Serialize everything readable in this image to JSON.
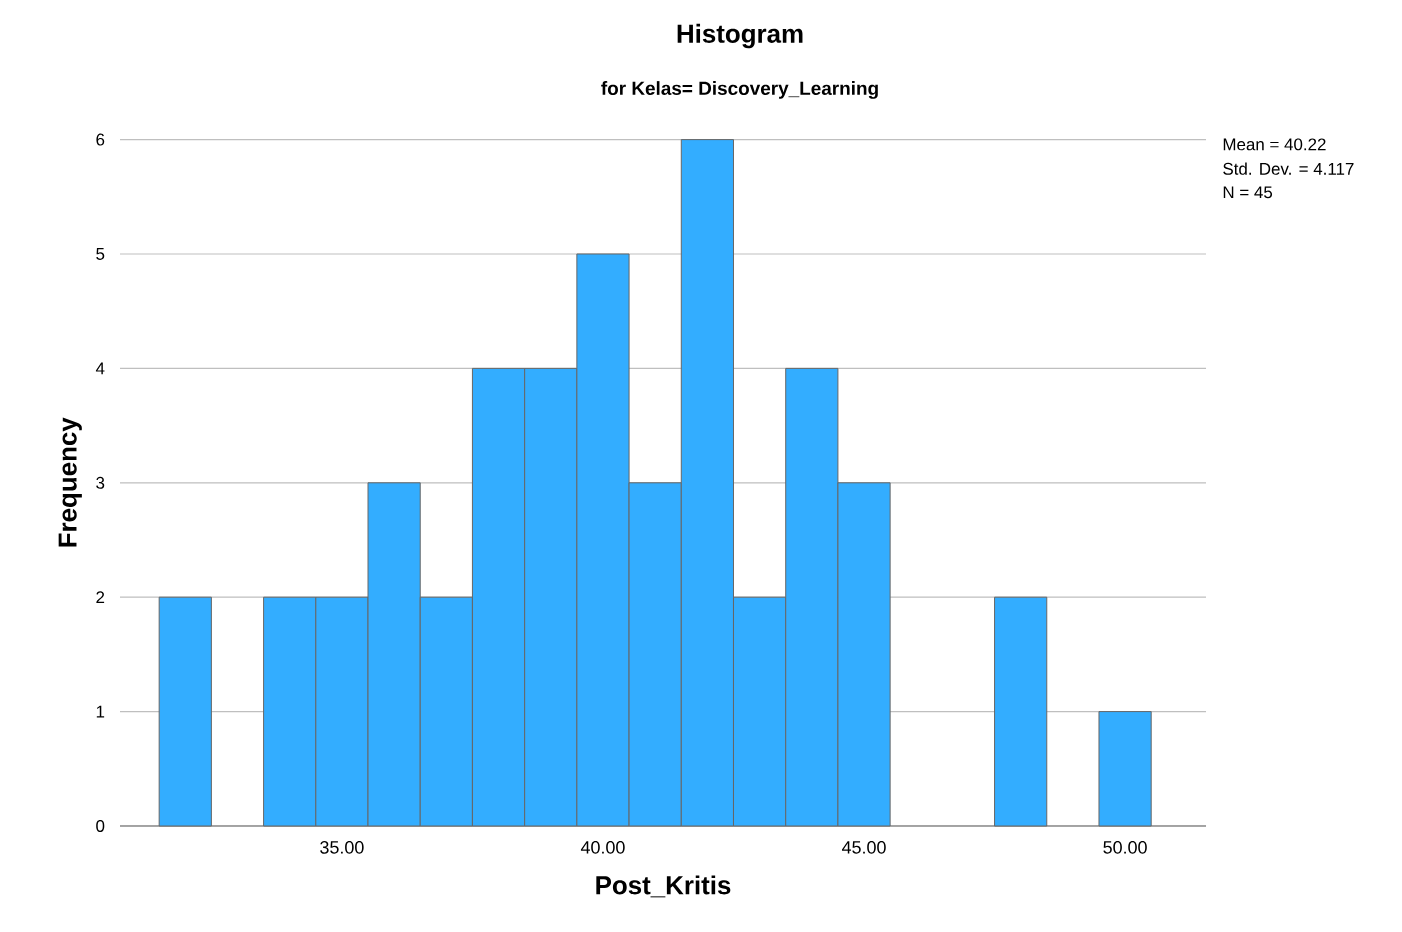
{
  "chart_data": {
    "type": "histogram",
    "title": "Histogram",
    "subtitle": "for Kelas= Discovery_Learning",
    "xlabel": "Post_Kritis",
    "ylabel": "Frequency",
    "annotations": [
      "Mean = 40.22",
      "Std. Dev. = 4.117",
      "N = 45"
    ],
    "bins": [
      31.5,
      32.5,
      33.5,
      34.5,
      35.5,
      36.5,
      37.5,
      38.5,
      39.5,
      40.5,
      41.5,
      42.5,
      43.5,
      44.5,
      45.5,
      46.5,
      47.5,
      48.5,
      49.5,
      50.5
    ],
    "values": [
      2,
      0,
      2,
      2,
      3,
      2,
      4,
      4,
      5,
      3,
      6,
      2,
      4,
      3,
      0,
      0,
      2,
      0,
      1
    ],
    "color": "#33adff",
    "xlim": [
      30.75,
      51.55
    ],
    "ylim": [
      0,
      6
    ],
    "xticks": [
      {
        "value": 35,
        "label": "35.00"
      },
      {
        "value": 40,
        "label": "40.00"
      },
      {
        "value": 45,
        "label": "45.00"
      },
      {
        "value": 50,
        "label": "50.00"
      }
    ],
    "yticks": [
      0,
      1,
      2,
      3,
      4,
      5,
      6
    ],
    "grid": "y"
  }
}
